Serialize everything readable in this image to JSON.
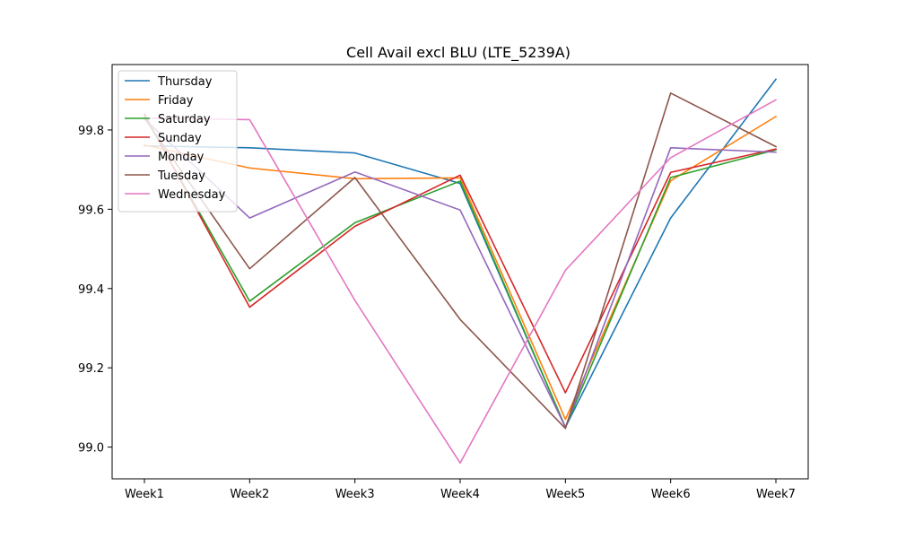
{
  "chart_data": {
    "type": "line",
    "title": "Cell Avail excl BLU (LTE_5239A)",
    "xlabel": "",
    "ylabel": "",
    "categories": [
      "Week1",
      "Week2",
      "Week3",
      "Week4",
      "Week5",
      "Week6",
      "Week7"
    ],
    "ylim": [
      98.92,
      99.965
    ],
    "yticks": [
      99.0,
      99.2,
      99.4,
      99.6,
      99.8
    ],
    "ytick_labels": [
      "99.0",
      "99.2",
      "99.4",
      "99.6",
      "99.8"
    ],
    "grid": false,
    "legend_position": "top-left",
    "series": [
      {
        "name": "Thursday",
        "color": "#1f77b4",
        "values": [
          99.76,
          99.755,
          99.742,
          99.665,
          99.05,
          99.578,
          99.928
        ]
      },
      {
        "name": "Friday",
        "color": "#ff7f0e",
        "values": [
          99.762,
          99.704,
          99.677,
          99.679,
          99.07,
          99.672,
          99.834
        ]
      },
      {
        "name": "Saturday",
        "color": "#2ca02c",
        "values": [
          99.836,
          99.368,
          99.566,
          99.671,
          99.05,
          99.68,
          99.75
        ]
      },
      {
        "name": "Sunday",
        "color": "#d62728",
        "values": [
          99.84,
          99.353,
          99.557,
          99.686,
          99.137,
          99.693,
          99.752
        ]
      },
      {
        "name": "Monday",
        "color": "#9467bd",
        "values": [
          99.828,
          99.578,
          99.694,
          99.598,
          99.05,
          99.755,
          99.744
        ]
      },
      {
        "name": "Tuesday",
        "color": "#8c564b",
        "values": [
          99.83,
          99.45,
          99.68,
          99.322,
          99.047,
          99.893,
          99.758
        ]
      },
      {
        "name": "Wednesday",
        "color": "#e377c2",
        "values": [
          99.83,
          99.826,
          99.37,
          98.96,
          99.446,
          99.73,
          99.876
        ]
      }
    ]
  }
}
